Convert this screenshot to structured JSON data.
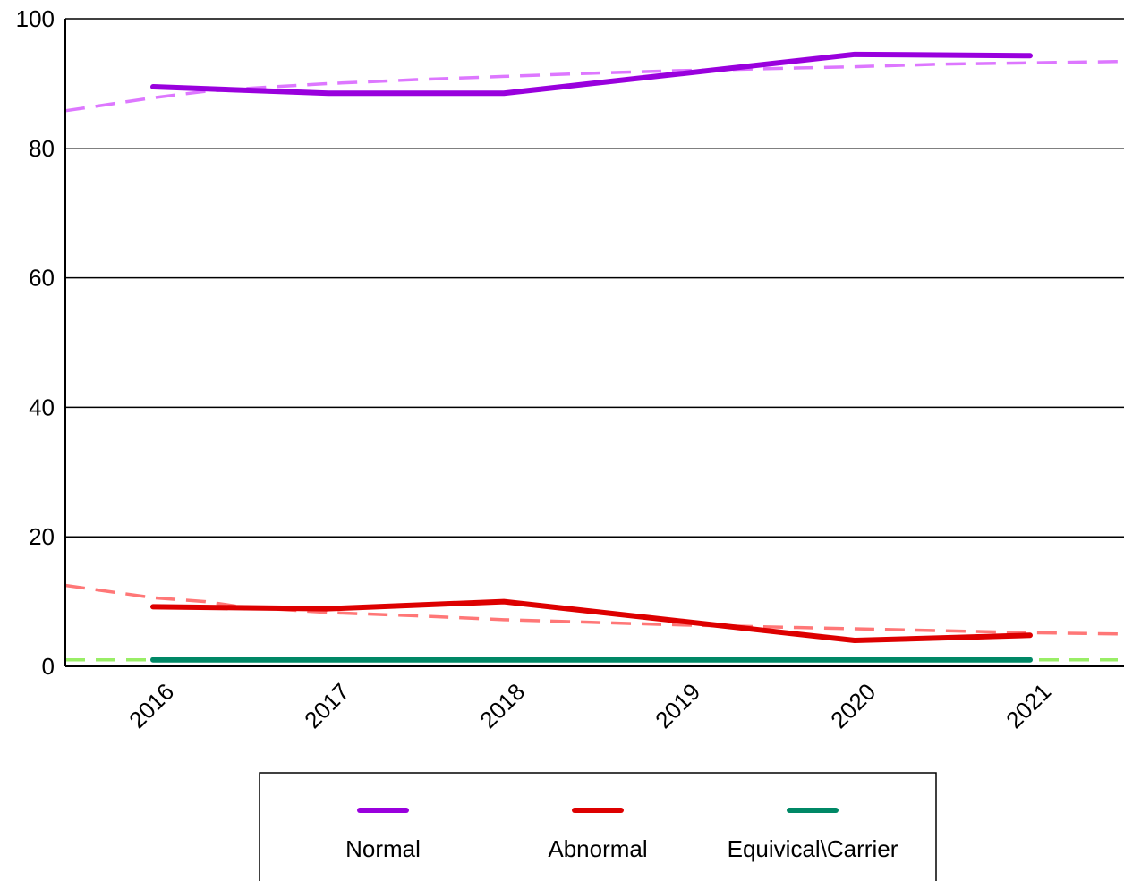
{
  "chart_data": {
    "type": "line",
    "categories": [
      "2016",
      "2017",
      "2018",
      "2019",
      "2020",
      "2021"
    ],
    "ylim": [
      0,
      100
    ],
    "yticks": [
      0,
      20,
      40,
      60,
      80,
      100
    ],
    "grid": true,
    "legend_position": "bottom",
    "series": [
      {
        "name": "Normal",
        "color": "#9900dd",
        "values": [
          89.5,
          88.5,
          88.5,
          91.5,
          94.5,
          94.3
        ]
      },
      {
        "name": "Abnormal",
        "color": "#dd0000",
        "values": [
          9.2,
          8.9,
          10.0,
          7.0,
          4.0,
          4.8
        ]
      },
      {
        "name": "Equivical\\Carrier",
        "color": "#008866",
        "values": [
          1.0,
          1.0,
          1.0,
          1.0,
          1.0,
          1.0
        ]
      }
    ],
    "trend_lines": [
      {
        "color": "#dd77ff",
        "x": [
          -0.5,
          0,
          0.3,
          0.5,
          1,
          1.5,
          2,
          2.5,
          3,
          3.5,
          4,
          4.5,
          5,
          5.5
        ],
        "values": [
          85.8,
          87.8,
          88.8,
          89.2,
          90.0,
          90.6,
          91.1,
          91.6,
          92.0,
          92.3,
          92.6,
          93.0,
          93.2,
          93.4
        ]
      },
      {
        "color": "#ff7777",
        "x": [
          -0.5,
          0,
          0.3,
          0.5,
          1,
          1.5,
          2,
          2.5,
          3,
          3.5,
          4,
          4.5,
          5,
          5.5
        ],
        "values": [
          12.5,
          10.6,
          10.0,
          9.2,
          8.3,
          7.8,
          7.2,
          6.8,
          6.4,
          6.1,
          5.8,
          5.5,
          5.2,
          5.0
        ]
      },
      {
        "color": "#99ee66",
        "x": [
          -0.5,
          5.5
        ],
        "values": [
          1.0,
          1.0
        ]
      }
    ]
  }
}
